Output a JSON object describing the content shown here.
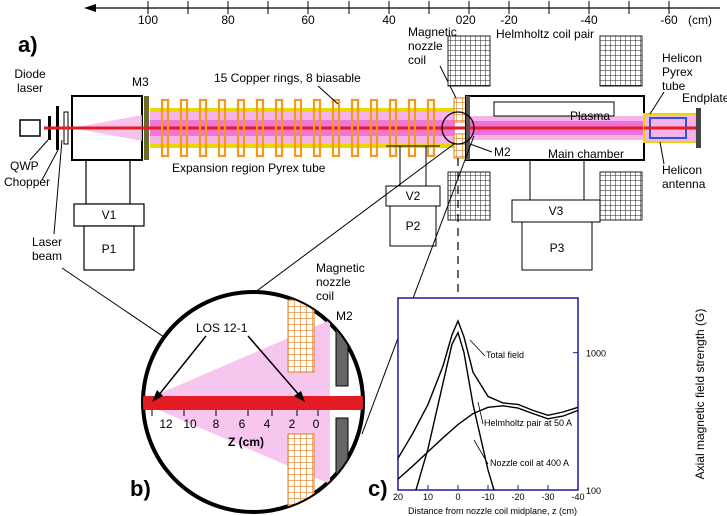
{
  "panel_labels": {
    "a": "a)",
    "b": "b)",
    "c": "c)"
  },
  "top_axis": {
    "ticks": [
      "100",
      "80",
      "60",
      "40",
      "20",
      "0",
      "-20",
      "-40",
      "-60"
    ],
    "unit": "(cm)"
  },
  "labels": {
    "diode_laser": [
      "Diode",
      "laser"
    ],
    "qwp": "QWP",
    "chopper": "Chopper",
    "laser_beam": [
      "Laser",
      "beam"
    ],
    "m3": "M3",
    "copper_rings": "15 Copper rings, 8 biasable",
    "expansion_tube": "Expansion region Pyrex tube",
    "magnetic_nozzle_coil": [
      "Magnetic",
      "nozzle",
      "coil"
    ],
    "helmholtz": "Helmholtz coil pair",
    "plasma": "Plasma",
    "m2": "M2",
    "main_chamber": "Main chamber",
    "helicon_pyrex": [
      "Helicon",
      "Pyrex",
      "tube"
    ],
    "endplate": "Endplate",
    "helicon_antenna": [
      "Helicon",
      "antenna"
    ],
    "v1": "V1",
    "p1": "P1",
    "v2": "V2",
    "p2": "P2",
    "v3": "V3",
    "p3": "P3"
  },
  "inset_b": {
    "los": "LOS 12-1",
    "coil": [
      "Magnetic",
      "nozzle",
      "coil"
    ],
    "m2": "M2",
    "z_ticks": [
      "12",
      "10",
      "8",
      "6",
      "4",
      "2",
      "0"
    ],
    "z_label": "Z (cm)"
  },
  "chart_data": {
    "type": "line",
    "xlabel": "Distance from nozzle coil midplane, z (cm)",
    "ylabel": "Axial magnetic field strength (G)",
    "x_ticks": [
      "20",
      "10",
      "0",
      "-10",
      "-20",
      "-30",
      "-40"
    ],
    "y_ticks": [
      "1000",
      "100"
    ],
    "xlim": [
      20,
      -40
    ],
    "ylim": [
      100,
      2500
    ],
    "yscale": "log",
    "series": [
      {
        "name": "Total field",
        "x": [
          20,
          15,
          10,
          5,
          2,
          0,
          -2,
          -5,
          -10,
          -15,
          -20,
          -25,
          -30,
          -35,
          -40
        ],
        "y": [
          170,
          260,
          420,
          800,
          1350,
          1700,
          1300,
          720,
          480,
          430,
          420,
          380,
          350,
          370,
          400
        ]
      },
      {
        "name": "Helmholtz pair at 50 A",
        "x": [
          20,
          15,
          10,
          5,
          0,
          -5,
          -10,
          -15,
          -20,
          -25,
          -30,
          -35,
          -40
        ],
        "y": [
          120,
          150,
          190,
          240,
          300,
          360,
          400,
          410,
          395,
          360,
          330,
          345,
          380
        ]
      },
      {
        "name": "Nozzle coil at 400 A",
        "x": [
          14,
          10,
          5,
          2,
          0,
          -2,
          -5,
          -10,
          -12
        ],
        "y": [
          100,
          200,
          600,
          1150,
          1400,
          1000,
          420,
          140,
          100
        ]
      }
    ],
    "annotations": [
      "Total field",
      "Helmholtz pair at 50 A",
      "Nozzle coil at 400 A"
    ]
  }
}
